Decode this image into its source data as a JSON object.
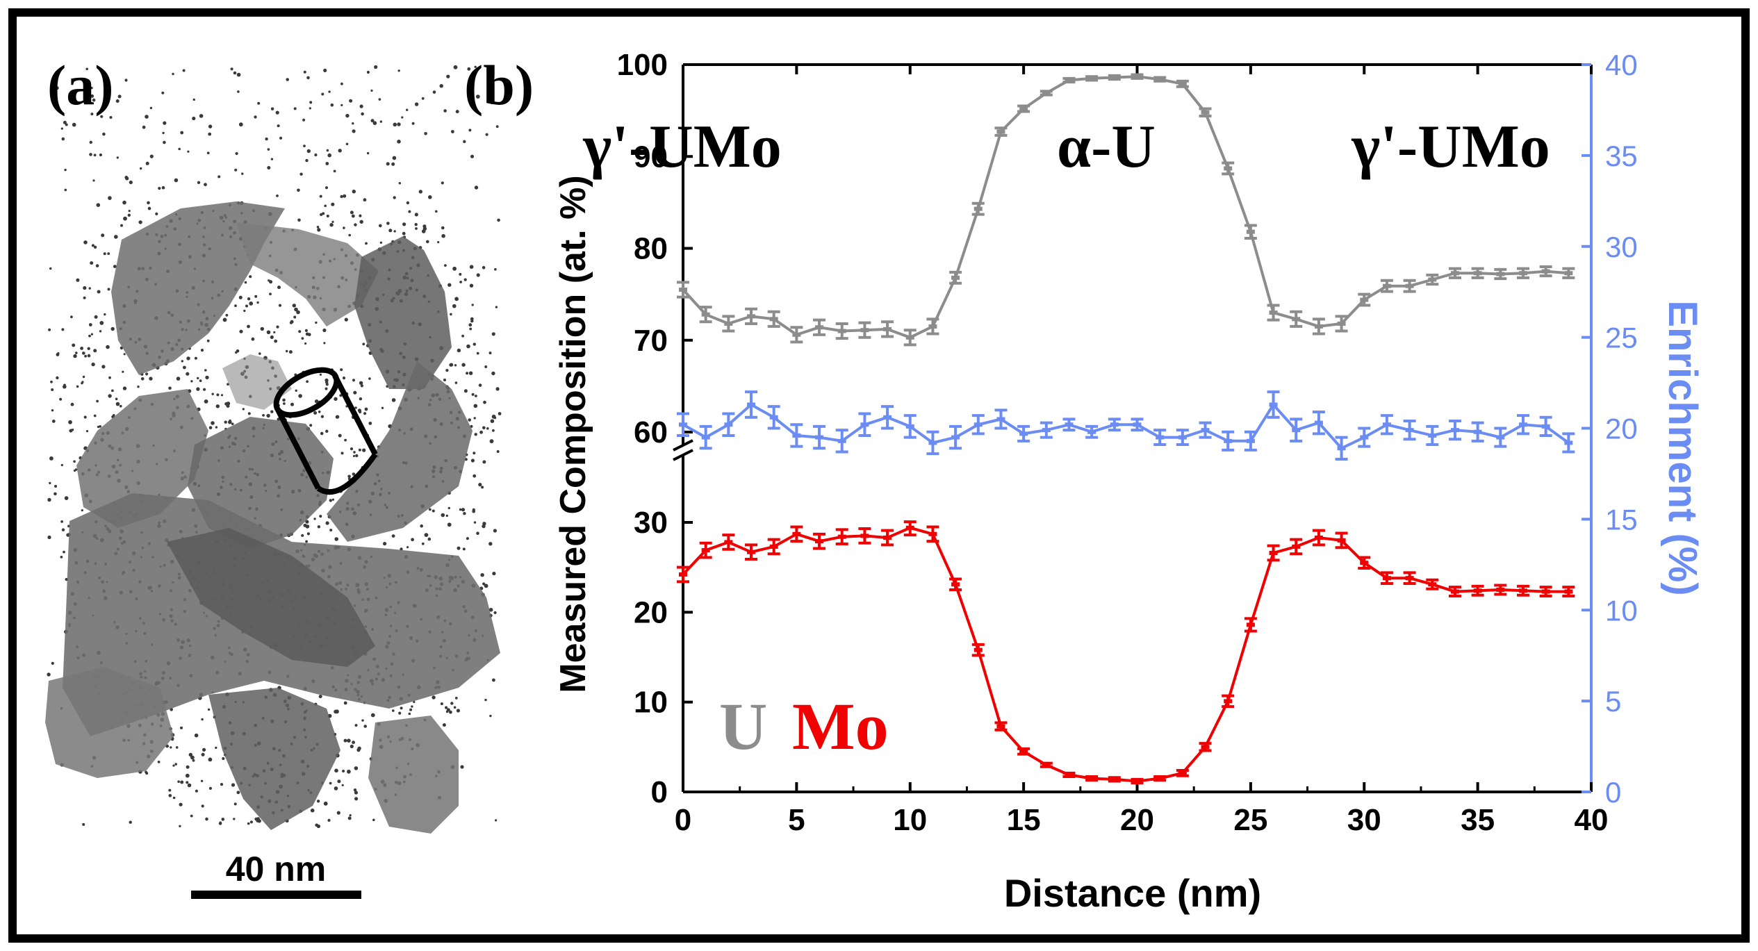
{
  "panel_a": {
    "label": "(a)",
    "scale_bar": {
      "label": "40 nm",
      "length_nm": 40
    }
  },
  "panel_b": {
    "label": "(b)",
    "region_labels": [
      "γ'-UMo",
      "α-U",
      "γ'-UMo"
    ],
    "legend": {
      "u_label": "U",
      "mo_label": "Mo"
    }
  },
  "colors": {
    "u": "#8c8c8c",
    "mo": "#f00000",
    "enrichment": "#6b8cf2",
    "axis": "#000000",
    "reconstruction": "#6a6a6a"
  },
  "chart_data": {
    "type": "line",
    "xlabel": "Distance (nm)",
    "ylabel": "Measured Composition (at. %)",
    "y2label": "Enrichment (%)",
    "xlim": [
      0,
      40
    ],
    "xticks": [
      0,
      5,
      10,
      15,
      20,
      25,
      30,
      35,
      40
    ],
    "ylim_lower": [
      0,
      30
    ],
    "ylim_upper": [
      60,
      100
    ],
    "yticks": [
      0,
      10,
      20,
      30,
      60,
      70,
      80,
      90,
      100
    ],
    "y2lim": [
      0,
      40
    ],
    "y2ticks": [
      0,
      5,
      10,
      15,
      20,
      25,
      30,
      35,
      40
    ],
    "x": [
      0,
      1,
      2,
      3,
      4,
      5,
      6,
      7,
      8,
      9,
      10,
      11,
      12,
      13,
      14,
      15,
      16,
      17,
      18,
      19,
      20,
      21,
      22,
      23,
      24,
      25,
      26,
      27,
      28,
      29,
      30,
      31,
      32,
      33,
      34,
      35,
      36,
      37,
      38,
      39
    ],
    "series": [
      {
        "name": "U",
        "axis": "left",
        "values": [
          75.5,
          72.8,
          71.8,
          72.6,
          72.3,
          70.6,
          71.4,
          71.0,
          71.1,
          71.2,
          70.3,
          71.5,
          76.8,
          84.3,
          92.7,
          95.2,
          96.9,
          98.3,
          98.5,
          98.6,
          98.7,
          98.4,
          97.9,
          94.8,
          88.7,
          81.8,
          73.0,
          72.3,
          71.5,
          71.8,
          74.4,
          75.9,
          75.9,
          76.6,
          77.3,
          77.3,
          77.2,
          77.3,
          77.5,
          77.3
        ],
        "errors": [
          0.8,
          0.8,
          0.8,
          0.8,
          0.8,
          0.8,
          0.8,
          0.8,
          0.8,
          0.8,
          0.8,
          0.8,
          0.6,
          0.6,
          0.4,
          0.3,
          0.2,
          0.2,
          0.2,
          0.2,
          0.2,
          0.2,
          0.3,
          0.4,
          0.6,
          0.7,
          0.8,
          0.8,
          0.8,
          0.8,
          0.6,
          0.6,
          0.6,
          0.5,
          0.5,
          0.5,
          0.5,
          0.5,
          0.5,
          0.5
        ]
      },
      {
        "name": "Mo",
        "axis": "left",
        "values": [
          24.2,
          26.9,
          27.8,
          26.7,
          27.3,
          28.7,
          27.9,
          28.4,
          28.5,
          28.3,
          29.4,
          28.7,
          23.1,
          15.8,
          7.3,
          4.5,
          3.0,
          1.9,
          1.5,
          1.4,
          1.2,
          1.5,
          2.1,
          5.0,
          10.1,
          18.6,
          26.6,
          27.3,
          28.3,
          28.0,
          25.5,
          23.8,
          23.8,
          23.1,
          22.3,
          22.4,
          22.5,
          22.4,
          22.3,
          22.3
        ],
        "errors": [
          0.8,
          0.8,
          0.8,
          0.8,
          0.8,
          0.8,
          0.8,
          0.8,
          0.8,
          0.8,
          0.8,
          0.8,
          0.6,
          0.6,
          0.4,
          0.3,
          0.2,
          0.2,
          0.2,
          0.2,
          0.2,
          0.2,
          0.3,
          0.4,
          0.6,
          0.7,
          0.8,
          0.8,
          0.8,
          0.8,
          0.6,
          0.6,
          0.6,
          0.5,
          0.5,
          0.5,
          0.5,
          0.5,
          0.5,
          0.5
        ]
      },
      {
        "name": "Enrichment",
        "axis": "right",
        "values": [
          20.2,
          19.5,
          20.2,
          21.3,
          20.6,
          19.6,
          19.5,
          19.3,
          20.2,
          20.6,
          20.1,
          19.2,
          19.5,
          20.2,
          20.5,
          19.7,
          19.9,
          20.2,
          19.8,
          20.2,
          20.2,
          19.5,
          19.5,
          19.9,
          19.3,
          19.3,
          21.3,
          19.9,
          20.3,
          18.9,
          19.5,
          20.2,
          19.9,
          19.6,
          19.9,
          19.8,
          19.5,
          20.2,
          20.1,
          19.2
        ],
        "errors": [
          0.6,
          0.6,
          0.6,
          0.7,
          0.6,
          0.6,
          0.6,
          0.6,
          0.6,
          0.6,
          0.6,
          0.6,
          0.6,
          0.5,
          0.5,
          0.4,
          0.4,
          0.3,
          0.3,
          0.3,
          0.3,
          0.4,
          0.4,
          0.4,
          0.5,
          0.5,
          0.7,
          0.6,
          0.6,
          0.6,
          0.5,
          0.5,
          0.5,
          0.5,
          0.5,
          0.5,
          0.5,
          0.5,
          0.5,
          0.5
        ]
      }
    ]
  }
}
